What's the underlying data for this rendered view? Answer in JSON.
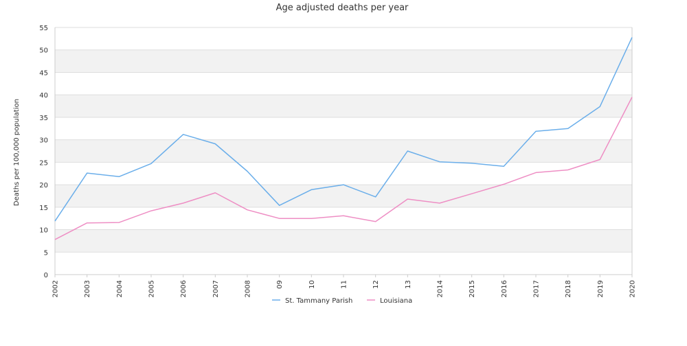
{
  "chart_data": {
    "type": "line",
    "title": "Age adjusted deaths per year",
    "xlabel": "",
    "ylabel": "Deaths per 100,000 population",
    "categories": [
      "2002",
      "2003",
      "2004",
      "2005",
      "2006",
      "2007",
      "2008",
      "09",
      "10",
      "11",
      "12",
      "13",
      "2014",
      "2015",
      "2016",
      "2017",
      "2018",
      "2019",
      "2020"
    ],
    "ylim": [
      0,
      55
    ],
    "yticks": [
      0,
      5,
      10,
      15,
      20,
      25,
      30,
      35,
      40,
      45,
      50,
      55
    ],
    "grid": "horizontal alternating bands",
    "legend_position": "bottom-center",
    "series": [
      {
        "name": "St. Tammany Parish",
        "color": "#6aaeea",
        "values": [
          11.9,
          22.6,
          21.8,
          24.7,
          31.2,
          29.1,
          23.0,
          15.4,
          18.9,
          20.0,
          17.3,
          27.5,
          25.1,
          24.8,
          24.1,
          31.9,
          32.5,
          37.4,
          52.8
        ]
      },
      {
        "name": "Louisiana",
        "color": "#ee8ec4",
        "values": [
          7.8,
          11.5,
          11.6,
          14.2,
          15.9,
          18.2,
          14.4,
          12.5,
          12.5,
          13.1,
          11.8,
          16.8,
          15.9,
          18.0,
          20.1,
          22.7,
          23.3,
          25.6,
          39.5
        ]
      }
    ],
    "colors": {
      "band": "#f2f2f2",
      "gridline": "#dddddd",
      "axis": "#cccccc"
    }
  }
}
